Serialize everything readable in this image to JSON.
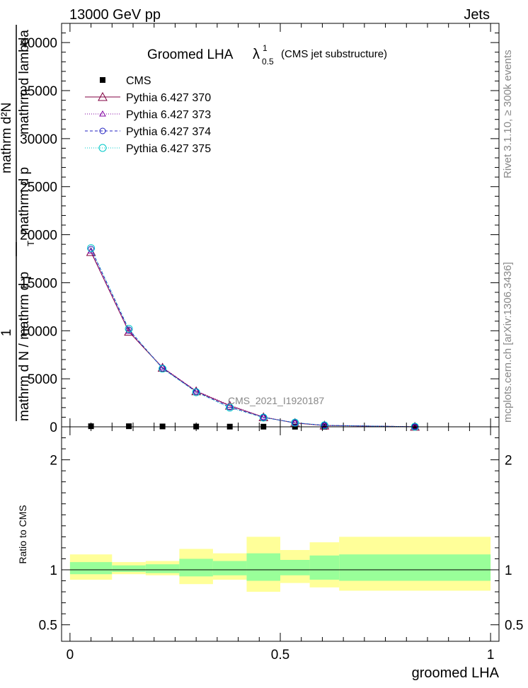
{
  "header": {
    "left": "13000 GeV pp",
    "right": "Jets"
  },
  "side_texts": {
    "rivet": "Rivet 3.1.10, ≥ 300k events",
    "mcplots": "mcplots.cern.ch [arXiv:1306.3436]"
  },
  "title": {
    "main": "Groomed LHA",
    "lambda": "λ",
    "sup": "1",
    "sub": "0.5",
    "suffix": "(CMS jet substructure)"
  },
  "watermark": "CMS_2021_I1920187",
  "ylabel_main": {
    "numer_1": "1",
    "denom_1": "mathrm d N / mathrm d p",
    "numer_2": "mathrm d²N",
    "denom_2": "mathrm d p",
    "numer_2b": "mathrm d lambda",
    "sub_t": "T"
  },
  "xlabel": "groomed LHA",
  "ratio_ylabel": "Ratio to CMS",
  "colors": {
    "cms": "#000000",
    "p370": "#800040",
    "p373": "#8000a0",
    "p374": "#2020c0",
    "p375": "#00c8c8",
    "band_outer": "#ffff99",
    "band_inner": "#99ff99"
  },
  "chart_data": {
    "type": "line",
    "xlim": [
      -0.02,
      1.02
    ],
    "main": {
      "ylim": [
        0,
        42000
      ],
      "yticks": [
        0,
        5000,
        10000,
        15000,
        20000,
        25000,
        30000,
        35000,
        40000
      ],
      "ytick_labels": [
        "0",
        "5000",
        "10000",
        "15000",
        "20000",
        "25000",
        "30000",
        "35000",
        "40000"
      ]
    },
    "ratio": {
      "ylim": [
        0.35,
        2.3
      ],
      "yticks": [
        0.5,
        1,
        2
      ],
      "ytick_labels": [
        "0.5",
        "1",
        "2"
      ]
    },
    "xticks": [
      0,
      0.5,
      1
    ],
    "xtick_labels": [
      "0",
      "0.5",
      "1"
    ],
    "bins": [
      [
        0,
        0.1
      ],
      [
        0.1,
        0.18
      ],
      [
        0.18,
        0.26
      ],
      [
        0.26,
        0.34
      ],
      [
        0.34,
        0.42
      ],
      [
        0.42,
        0.5
      ],
      [
        0.5,
        0.57
      ],
      [
        0.57,
        0.64
      ],
      [
        0.64,
        1.0
      ]
    ],
    "x": [
      0.05,
      0.14,
      0.22,
      0.3,
      0.38,
      0.46,
      0.535,
      0.605,
      0.82
    ],
    "series": [
      {
        "name": "CMS",
        "marker": "square",
        "values": [
          60,
          60,
          40,
          30,
          20,
          15,
          10,
          5,
          2
        ]
      },
      {
        "name": "Pythia 6.427 370",
        "marker": "triangle",
        "dash": "",
        "values": [
          18200,
          9900,
          6150,
          3700,
          2200,
          1000,
          400,
          140,
          10
        ]
      },
      {
        "name": "Pythia 6.427 373",
        "marker": "triangle-small",
        "dash": "1,2",
        "values": [
          18300,
          9950,
          6200,
          3750,
          2250,
          1020,
          410,
          145,
          10
        ]
      },
      {
        "name": "Pythia 6.427 374",
        "marker": "circle",
        "dash": "4,3",
        "values": [
          18500,
          10100,
          6100,
          3650,
          2050,
          980,
          420,
          150,
          10
        ]
      },
      {
        "name": "Pythia 6.427 375",
        "marker": "circle-large",
        "dash": "1,2",
        "values": [
          18600,
          10200,
          6050,
          3600,
          2000,
          960,
          430,
          155,
          10
        ]
      }
    ],
    "ratio_bands": {
      "outer_lo": [
        0.91,
        0.96,
        0.95,
        0.87,
        0.91,
        0.8,
        0.88,
        0.84,
        0.81
      ],
      "outer_hi": [
        1.14,
        1.07,
        1.08,
        1.19,
        1.15,
        1.3,
        1.18,
        1.25,
        1.3
      ],
      "inner_lo": [
        0.96,
        0.98,
        0.97,
        0.94,
        0.95,
        0.9,
        0.95,
        0.91,
        0.9
      ],
      "inner_hi": [
        1.07,
        1.04,
        1.05,
        1.1,
        1.08,
        1.15,
        1.09,
        1.13,
        1.14
      ]
    }
  }
}
